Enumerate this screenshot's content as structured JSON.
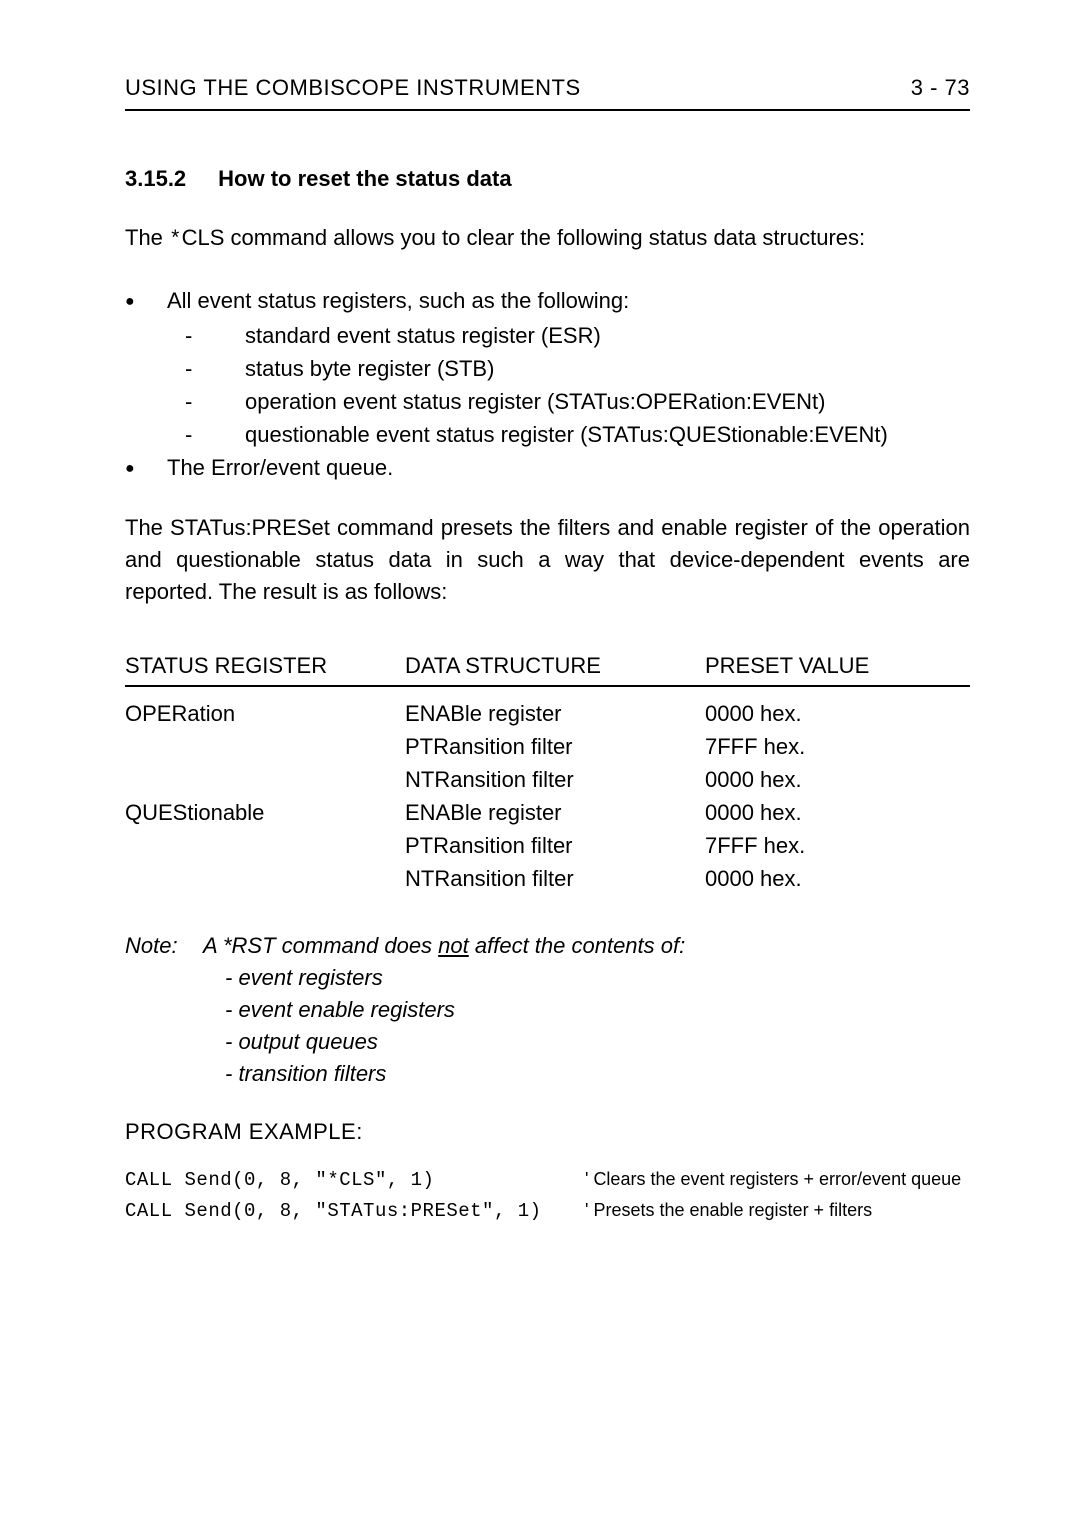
{
  "header": {
    "left": "USING THE COMBISCOPE INSTRUMENTS",
    "right": "3 - 73"
  },
  "section": {
    "number": "3.15.2",
    "title": "How to reset the status data"
  },
  "intro": "The *CLS command allows you to clear the following status data structures:",
  "bullet1_intro": "All event status registers, such as the following:",
  "sub_items": [
    "standard event status register (ESR)",
    "status byte register (STB)",
    "operation event status register (STATus:OPERation:EVENt)",
    "questionable event status register (STATus:QUEStionable:EVENt)"
  ],
  "bullet2": "The Error/event queue.",
  "preset_paragraph": "The STATus:PRESet command presets the filters and enable register of the operation and questionable status data in such a way that device-dependent events are reported. The result is as follows:",
  "table": {
    "headers": [
      "STATUS REGISTER",
      "DATA STRUCTURE",
      "PRESET VALUE"
    ],
    "rows": [
      {
        "reg": "OPERation",
        "struct": "ENABle register",
        "val": "0000 hex."
      },
      {
        "reg": "",
        "struct": "PTRansition filter",
        "val": "7FFF hex."
      },
      {
        "reg": "",
        "struct": "NTRansition filter",
        "val": "0000 hex."
      },
      {
        "reg": "QUEStionable",
        "struct": "ENABle register",
        "val": "0000 hex."
      },
      {
        "reg": "",
        "struct": "PTRansition filter",
        "val": "7FFF hex."
      },
      {
        "reg": "",
        "struct": "NTRansition filter",
        "val": "0000 hex."
      }
    ]
  },
  "note": {
    "label": "Note:",
    "line1_pre": "A *RST command does ",
    "line1_under": "not",
    "line1_post": " affect the contents of:",
    "items": [
      "- event registers",
      "- event enable registers",
      "- output queues",
      "- transition filters"
    ]
  },
  "prog_heading": "PROGRAM EXAMPLE:",
  "code": [
    {
      "text": "CALL Send(0, 8, \"*CLS\", 1)",
      "comment": "' Clears the event registers + error/event queue"
    },
    {
      "text": "CALL Send(0, 8, \"STATus:PRESet\", 1)",
      "comment": "' Presets the enable register + filters"
    }
  ]
}
